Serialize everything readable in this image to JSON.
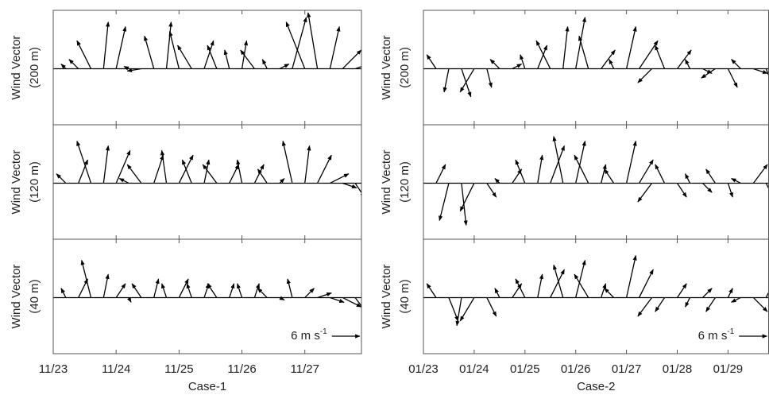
{
  "chart_data": [
    {
      "type": "quiver",
      "ylabel": "Wind Vector",
      "ylabel_sub": "(200 m)",
      "xlim": [
        23,
        27.9
      ],
      "ylim": [
        -12,
        12.5
      ],
      "xticks": [
        23,
        24,
        25,
        26,
        27
      ],
      "x": [
        23.2,
        23.4,
        23.6,
        23.8,
        24.0,
        24.2,
        24.4,
        24.6,
        24.8,
        25.0,
        25.2,
        25.4,
        25.6,
        25.8,
        26.0,
        26.2,
        26.4,
        26.6,
        26.8,
        27.0,
        27.2,
        27.4,
        27.6,
        27.8
      ],
      "u": [
        -1,
        -2,
        -3,
        1,
        2,
        -1,
        -3,
        -2,
        1,
        -2,
        -3,
        2,
        -2,
        -1,
        1,
        -3,
        -1,
        2,
        3,
        -4,
        -2,
        2,
        4,
        3
      ],
      "v": [
        1,
        2,
        6,
        10,
        9,
        0.5,
        -0.5,
        7,
        10,
        8,
        5,
        6,
        5,
        4,
        6,
        4,
        2,
        1,
        11,
        10,
        12,
        9,
        4,
        1
      ]
    },
    {
      "type": "quiver",
      "ylabel": "Wind Vector",
      "ylabel_sub": "(120 m)",
      "xlim": [
        23,
        27.9
      ],
      "ylim": [
        -12,
        12.5
      ],
      "xticks": [
        23,
        24,
        25,
        26,
        27
      ],
      "x": [
        23.2,
        23.4,
        23.6,
        23.8,
        24.0,
        24.2,
        24.4,
        24.6,
        24.8,
        25.0,
        25.2,
        25.4,
        25.6,
        25.8,
        26.0,
        26.2,
        26.4,
        26.6,
        26.8,
        27.0,
        27.2,
        27.4,
        27.6,
        27.8
      ],
      "u": [
        -2,
        2,
        -3,
        1,
        3,
        -2,
        -3,
        2,
        -1,
        3,
        -2,
        1,
        -3,
        2,
        -1,
        2,
        -2,
        1,
        -2,
        1,
        3,
        4,
        3,
        2
      ],
      "v": [
        2,
        5,
        9,
        8,
        7,
        1,
        4,
        6,
        7,
        6,
        5,
        5,
        4,
        4,
        5,
        4,
        3,
        1,
        9,
        8,
        6,
        2,
        -1,
        -3
      ]
    },
    {
      "type": "quiver",
      "ylabel": "Wind Vector",
      "ylabel_sub": "(40 m)",
      "xlabel": "Case-1",
      "xlim": [
        23,
        27.9
      ],
      "ylim": [
        -12,
        12.5
      ],
      "xticks": [
        {
          "value": 23,
          "label": "11/23"
        },
        {
          "value": 24,
          "label": "11/24"
        },
        {
          "value": 25,
          "label": "11/25"
        },
        {
          "value": 26,
          "label": "11/26"
        },
        {
          "value": 27,
          "label": "11/27"
        }
      ],
      "scale": {
        "value": 6,
        "label": "6 m s",
        "exponent": "-1"
      },
      "x": [
        23.2,
        23.4,
        23.6,
        23.8,
        24.0,
        24.2,
        24.4,
        24.6,
        24.8,
        25.0,
        25.2,
        25.4,
        25.6,
        25.8,
        26.0,
        26.2,
        26.4,
        26.6,
        26.8,
        27.0,
        27.2,
        27.4,
        27.6,
        27.8
      ],
      "u": [
        -1,
        2,
        -2,
        1,
        2,
        0.5,
        -2,
        1,
        -1,
        2,
        -1,
        1,
        -2,
        1,
        -1,
        1,
        -2,
        1,
        -1,
        2,
        3,
        3,
        4,
        3
      ],
      "v": [
        2,
        4,
        8,
        5,
        3,
        -1,
        3,
        4,
        3,
        4,
        3,
        3,
        3,
        3,
        3,
        3,
        2,
        -0.5,
        4,
        2,
        1,
        -1,
        -2,
        -4
      ]
    },
    {
      "type": "quiver",
      "ylabel": "Wind Vector",
      "ylabel_sub": "(200 m)",
      "xlim": [
        23,
        29.8
      ],
      "ylim": [
        -12,
        12.5
      ],
      "xticks": [
        23,
        24,
        25,
        26,
        27,
        28,
        29
      ],
      "x": [
        23.25,
        23.5,
        23.75,
        24.0,
        24.25,
        24.5,
        24.75,
        25.0,
        25.25,
        25.5,
        25.75,
        26.0,
        26.25,
        26.5,
        26.75,
        27.0,
        27.25,
        27.5,
        27.75,
        28.0,
        28.25,
        28.5,
        28.75,
        29.0,
        29.25,
        29.5,
        29.75
      ],
      "u": [
        -2,
        -1,
        2,
        -3,
        1,
        -2,
        2,
        -1,
        2,
        -3,
        1,
        2,
        -2,
        3,
        -1,
        2,
        4,
        -3,
        -2,
        3,
        -1,
        2,
        -3,
        2,
        -2,
        3,
        2
      ],
      "v": [
        3,
        -5,
        -6,
        -5,
        -4,
        2,
        1,
        3,
        5,
        6,
        9,
        11,
        7,
        4,
        2,
        9,
        6,
        -3,
        5,
        4,
        2,
        -1,
        -2,
        -4,
        2,
        -1,
        -5
      ]
    },
    {
      "type": "quiver",
      "ylabel": "Wind Vector",
      "ylabel_sub": "(120 m)",
      "xlim": [
        23,
        29.8
      ],
      "ylim": [
        -12,
        12.5
      ],
      "xticks": [
        23,
        24,
        25,
        26,
        27,
        28,
        29
      ],
      "x": [
        23.25,
        23.5,
        23.75,
        24.0,
        24.25,
        24.5,
        24.75,
        25.0,
        25.25,
        25.5,
        25.75,
        26.0,
        26.25,
        26.5,
        26.75,
        27.0,
        27.25,
        27.5,
        27.75,
        28.0,
        28.25,
        28.5,
        28.75,
        29.0,
        29.25,
        29.5,
        29.75
      ],
      "u": [
        2,
        -2,
        1,
        -3,
        2,
        -1,
        2,
        -2,
        1,
        3,
        -2,
        2,
        -3,
        1,
        -2,
        2,
        3,
        -3,
        -2,
        2,
        -1,
        2,
        -2,
        1,
        -2,
        3,
        2
      ],
      "v": [
        4,
        -8,
        -9,
        -6,
        -3,
        1,
        3,
        5,
        6,
        8,
        10,
        9,
        6,
        4,
        3,
        9,
        5,
        -4,
        4,
        -3,
        2,
        -2,
        3,
        -3,
        1,
        4,
        -4
      ]
    },
    {
      "type": "quiver",
      "ylabel": "Wind Vector",
      "ylabel_sub": "(40 m)",
      "xlabel": "Case-2",
      "xlim": [
        23,
        29.8
      ],
      "ylim": [
        -12,
        12.5
      ],
      "xticks": [
        {
          "value": 23,
          "label": "01/23"
        },
        {
          "value": 24,
          "label": "01/24"
        },
        {
          "value": 25,
          "label": "01/25"
        },
        {
          "value": 26,
          "label": "01/26"
        },
        {
          "value": 27,
          "label": "01/27"
        },
        {
          "value": 28,
          "label": "01/28"
        },
        {
          "value": 29,
          "label": "01/29"
        }
      ],
      "scale": {
        "value": 6,
        "label": "6 m s",
        "exponent": "-1"
      },
      "x": [
        23.25,
        23.5,
        23.75,
        24.0,
        24.25,
        24.5,
        24.75,
        25.0,
        25.25,
        25.5,
        25.75,
        26.0,
        26.25,
        26.5,
        26.75,
        27.0,
        27.25,
        27.5,
        27.75,
        28.0,
        28.25,
        28.5,
        28.75,
        29.0,
        29.25,
        29.5,
        29.75
      ],
      "u": [
        -2,
        2,
        -1,
        -3,
        2,
        -1,
        2,
        -2,
        1,
        3,
        -2,
        2,
        -3,
        1,
        -2,
        2,
        3,
        -3,
        -2,
        2,
        -1,
        2,
        -2,
        1,
        -2,
        3,
        2
      ],
      "v": [
        3,
        -5,
        -6,
        -5,
        -4,
        2,
        3,
        4,
        5,
        6,
        7,
        8,
        5,
        3,
        2,
        9,
        6,
        -4,
        -3,
        3,
        -2,
        2,
        -3,
        2,
        -1,
        -3,
        4
      ]
    }
  ]
}
